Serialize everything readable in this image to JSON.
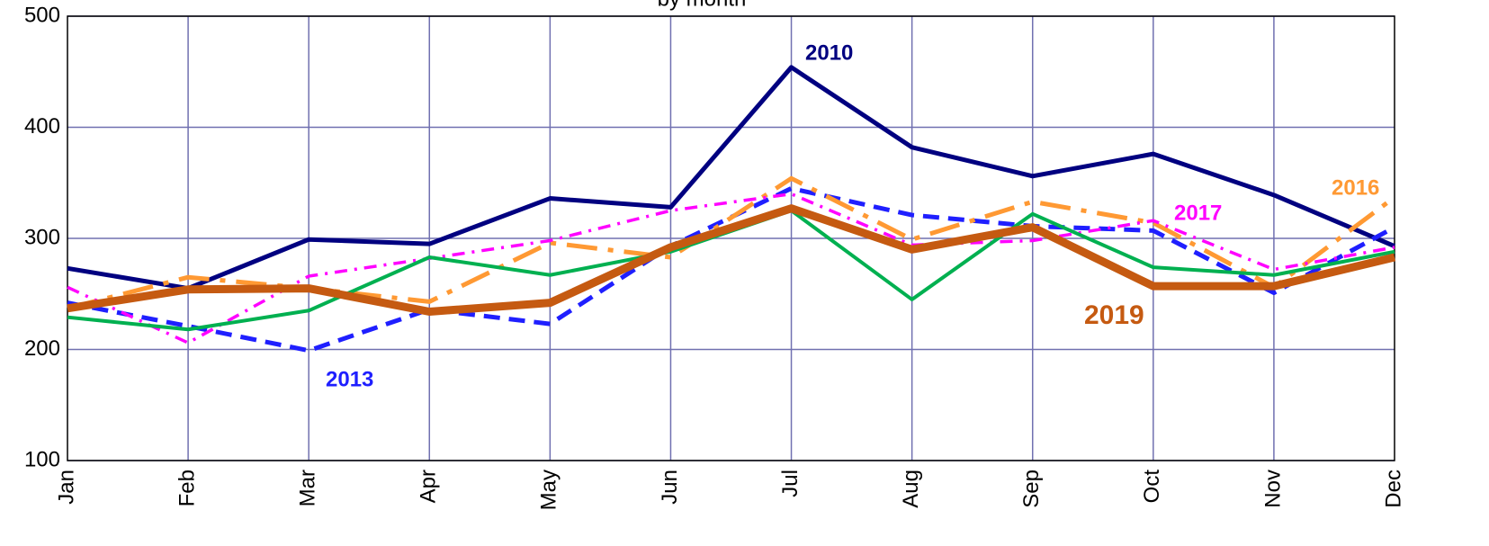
{
  "chart_data": {
    "type": "line",
    "title": "by month",
    "categories": [
      "Jan",
      "Feb",
      "Mar",
      "Apr",
      "May",
      "Jun",
      "Jul",
      "Aug",
      "Sep",
      "Oct",
      "Nov",
      "Dec"
    ],
    "ylim": [
      100,
      500
    ],
    "yticks": [
      100,
      200,
      300,
      400,
      500
    ],
    "grid": true,
    "series": [
      {
        "name": "2010",
        "color": "#000080",
        "values": [
          273,
          255,
          299,
          295,
          336,
          328,
          454,
          382,
          356,
          376,
          339,
          293
        ]
      },
      {
        "name": "2013",
        "color": "#1f1fff",
        "values": [
          242,
          221,
          199,
          236,
          223,
          293,
          345,
          321,
          311,
          307,
          251,
          310
        ]
      },
      {
        "name": "2016",
        "color": "#ff9933",
        "values": [
          237,
          265,
          255,
          243,
          296,
          283,
          354,
          299,
          333,
          314,
          256,
          337
        ]
      },
      {
        "name": "2017",
        "color": "#ff00ff",
        "values": [
          256,
          206,
          266,
          282,
          298,
          325,
          340,
          294,
          298,
          316,
          272,
          292
        ]
      },
      {
        "color": "#00b050",
        "values": [
          229,
          218,
          235,
          283,
          267,
          288,
          325,
          245,
          322,
          274,
          267,
          288
        ]
      },
      {
        "name": "2019",
        "color": "#c55a11",
        "values": [
          237,
          254,
          255,
          234,
          242,
          292,
          327,
          290,
          310,
          257,
          257,
          283
        ]
      }
    ]
  }
}
